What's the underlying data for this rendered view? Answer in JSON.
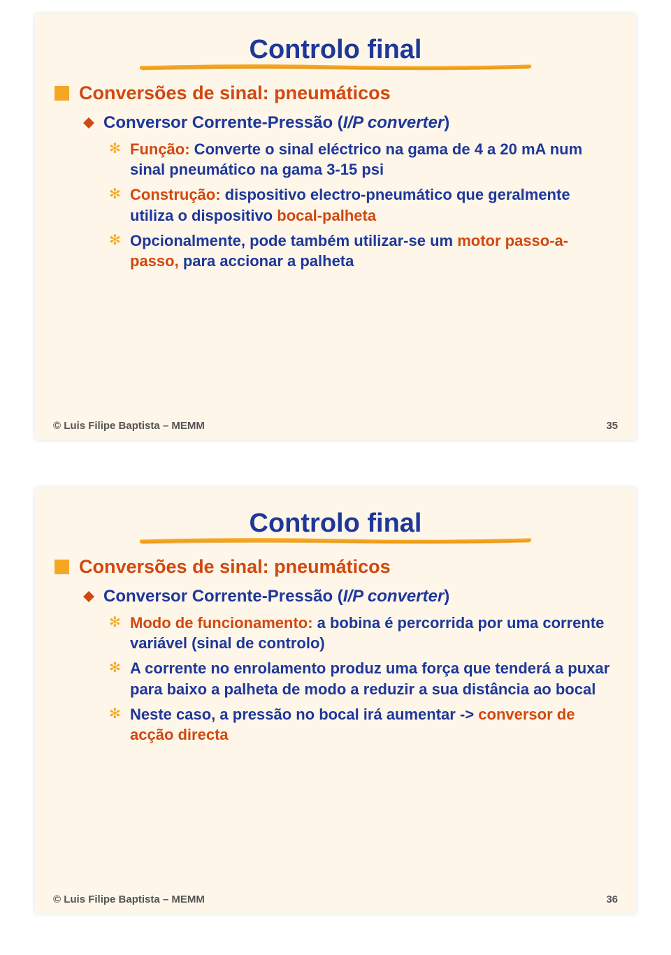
{
  "colors": {
    "slide_bg": "#fdf6e9",
    "title": "#1e3799",
    "heading": "#d14810",
    "text_blue": "#1e3799",
    "text_orange": "#d14810",
    "bullet_square": "#f5a623",
    "bullet_diamond": "#d14810",
    "bullet_star": "#f5a623",
    "underline": "#f5a623",
    "footer_text": "#555555"
  },
  "typography": {
    "title_fontsize": 38,
    "l1_fontsize": 27,
    "l2_fontsize": 24,
    "l3_fontsize": 22,
    "footer_fontsize": 15,
    "font_family": "Verdana"
  },
  "slides": [
    {
      "title": "Controlo final",
      "heading": "Conversões de sinal: pneumáticos",
      "sub": {
        "prefix": "Conversor Corrente-Pressão (",
        "italic": "I/P converter",
        "suffix": ")"
      },
      "items": [
        {
          "parts": [
            {
              "t": "Função:",
              "c": "orange"
            },
            {
              "t": " Converte o sinal eléctrico na gama de 4 a 20 mA num sinal pneumático na gama 3-15 psi",
              "c": "blue"
            }
          ]
        },
        {
          "parts": [
            {
              "t": "Construção:",
              "c": "orange"
            },
            {
              "t": " dispositivo electro-pneumático que geralmente utiliza o dispositivo ",
              "c": "blue"
            },
            {
              "t": "bocal-palheta",
              "c": "orange"
            }
          ]
        },
        {
          "parts": [
            {
              "t": "Opcionalmente, pode também utilizar-se um ",
              "c": "blue"
            },
            {
              "t": "motor passo-a-passo,",
              "c": "orange"
            },
            {
              "t": " para accionar a palheta",
              "c": "blue"
            }
          ]
        }
      ],
      "footer_author": "© Luis Filipe Baptista – MEMM",
      "footer_page": "35"
    },
    {
      "title": "Controlo final",
      "heading": "Conversões de sinal: pneumáticos",
      "sub": {
        "prefix": "Conversor Corrente-Pressão (",
        "italic": "I/P converter",
        "suffix": ")"
      },
      "items": [
        {
          "parts": [
            {
              "t": "Modo de funcionamento:",
              "c": "orange"
            },
            {
              "t": " a bobina é percorrida por uma corrente variável (sinal de controlo)",
              "c": "blue"
            }
          ]
        },
        {
          "parts": [
            {
              "t": "A corrente no enrolamento produz uma força que tenderá a puxar para baixo a palheta de modo a reduzir a sua distância ao bocal",
              "c": "blue"
            }
          ]
        },
        {
          "parts": [
            {
              "t": "Neste caso, a pressão no bocal irá aumentar ->",
              "c": "blue"
            },
            {
              "t": " conversor de acção directa",
              "c": "orange"
            }
          ]
        }
      ],
      "footer_author": "© Luis Filipe Baptista – MEMM",
      "footer_page": "36"
    }
  ]
}
